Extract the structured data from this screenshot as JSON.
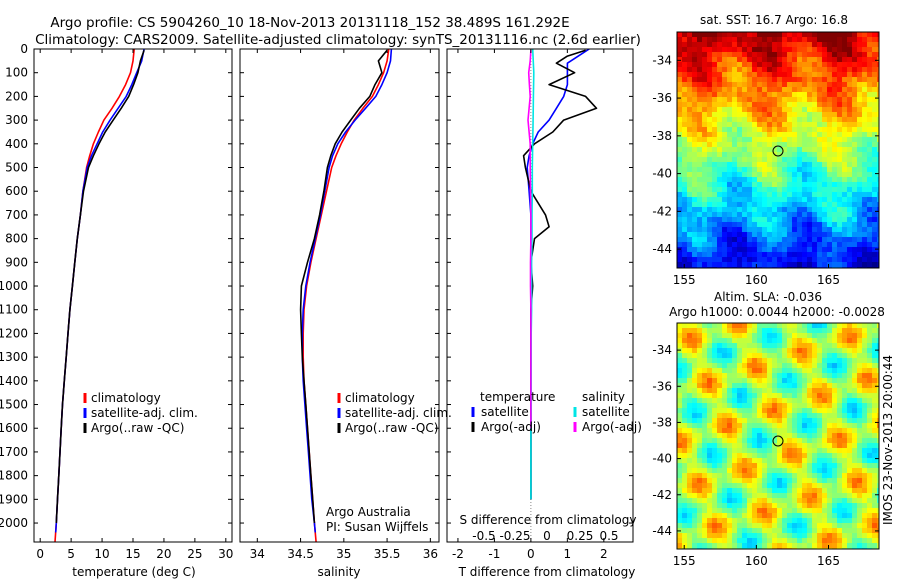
{
  "header": {
    "line1": "Argo profile: CS 5904260_10 18-Nov-2013 20131118_152 38.489S 161.292E",
    "line2": "Climatology: CARS2009. Satellite-adjusted climatology: synTS_20131116.nc (2.6d earlier)"
  },
  "legend_colors": {
    "climatology": "#ff0000",
    "satellite": "#0000ff",
    "argo": "#000000",
    "sal_sat": "#00e5e5",
    "sal_argo": "#ff00ff",
    "marker": "#000000"
  },
  "panels": {
    "temperature": {
      "xlabel": "temperature (deg C)",
      "legend": [
        "climatology",
        "satellite-adj. clim.",
        "Argo(..raw -QC)"
      ]
    },
    "salinity": {
      "xlabel": "salinity",
      "legend": [
        "climatology",
        "satellite-adj. clim.",
        "Argo(..raw -QC)"
      ],
      "credit1": "Argo Australia",
      "credit2": "PI: Susan Wijffels"
    },
    "difference": {
      "xlabel": "T difference from climatology",
      "top_axis_label": "S difference from climatology",
      "top_ticks": [
        "-0.5",
        "-0.25",
        "0",
        "0.25",
        "0.5"
      ],
      "legend_temp_title": "temperature",
      "legend_temp": [
        "satellite",
        "Argo(-adj)"
      ],
      "legend_sal_title": "salinity",
      "legend_sal": [
        "satellite",
        "Argo(-adj)"
      ]
    },
    "sst_map": {
      "title": "sat. SST: 16.7  Argo: 16.8",
      "profile_lon": 161.292,
      "profile_lat": -38.489
    },
    "sla_map": {
      "title1": "Altim. SLA: -0.036",
      "title2": "Argo h1000: 0.0044 h2000: -0.0028",
      "profile_lon": 161.292,
      "profile_lat": -38.489
    },
    "side_label": "IMOS 23-Nov-2013 20:00:44"
  },
  "chart_data": [
    {
      "type": "line",
      "name": "temperature-profile",
      "xlabel": "temperature (deg C)",
      "ylabel": "",
      "xlim": [
        -1,
        31
      ],
      "ylim": [
        2080,
        0
      ],
      "xticks": [
        0,
        5,
        10,
        15,
        20,
        25,
        30
      ],
      "yticks": [
        0,
        100,
        200,
        300,
        400,
        500,
        600,
        700,
        800,
        900,
        1000,
        1100,
        1200,
        1300,
        1400,
        1500,
        1600,
        1700,
        1800,
        1900,
        2000
      ],
      "series": [
        {
          "name": "climatology",
          "color": "#ff0000",
          "x": [
            15.2,
            15.0,
            14.6,
            13.8,
            12.8,
            11.6,
            10.3,
            9.4,
            8.6,
            8.0,
            7.5,
            6.9,
            6.5,
            6.0,
            5.6,
            5.2,
            4.8,
            4.5,
            4.2,
            3.9,
            3.6,
            3.4,
            3.2,
            3.0,
            2.8,
            2.6,
            2.4
          ],
          "y": [
            0,
            50,
            100,
            150,
            200,
            250,
            300,
            350,
            400,
            450,
            500,
            600,
            700,
            800,
            900,
            1000,
            1100,
            1200,
            1300,
            1400,
            1500,
            1600,
            1700,
            1800,
            1900,
            2000,
            2080
          ]
        },
        {
          "name": "satellite-adj. clim.",
          "color": "#0000ff",
          "x": [
            16.8,
            16.4,
            15.6,
            14.8,
            13.9,
            12.6,
            11.3,
            10.1,
            9.2,
            8.3,
            7.6,
            6.9,
            6.5,
            6.0,
            5.6,
            5.2,
            4.8,
            4.5,
            4.2,
            3.9,
            3.6,
            3.4,
            3.2,
            3.0,
            2.8,
            2.6,
            2.5
          ],
          "y": [
            0,
            50,
            100,
            150,
            200,
            250,
            300,
            350,
            400,
            450,
            500,
            600,
            700,
            800,
            900,
            1000,
            1100,
            1200,
            1300,
            1400,
            1500,
            1600,
            1700,
            1800,
            1900,
            2000,
            2040
          ]
        },
        {
          "name": "Argo(..raw -QC)",
          "color": "#000000",
          "x": [
            16.8,
            16.2,
            15.8,
            15.1,
            14.3,
            13.1,
            11.8,
            10.5,
            9.5,
            8.6,
            7.8,
            7.0,
            6.5,
            6.0,
            5.6,
            5.2,
            4.8,
            4.5,
            4.2,
            3.9,
            3.6,
            3.4,
            3.2,
            3.0,
            2.8,
            2.6
          ],
          "y": [
            5,
            50,
            100,
            150,
            200,
            250,
            300,
            350,
            400,
            450,
            500,
            600,
            700,
            800,
            900,
            1000,
            1100,
            1200,
            1300,
            1400,
            1500,
            1600,
            1700,
            1800,
            1900,
            2000
          ]
        }
      ]
    },
    {
      "type": "line",
      "name": "salinity-profile",
      "xlabel": "salinity",
      "ylabel": "",
      "xlim": [
        33.8,
        36.1
      ],
      "ylim": [
        2080,
        0
      ],
      "xticks": [
        34,
        34.5,
        35,
        35.5,
        36
      ],
      "series": [
        {
          "name": "climatology",
          "color": "#ff0000",
          "x": [
            35.52,
            35.5,
            35.46,
            35.4,
            35.33,
            35.22,
            35.12,
            35.04,
            34.97,
            34.91,
            34.86,
            34.8,
            34.74,
            34.68,
            34.62,
            34.57,
            34.54,
            34.53,
            34.53,
            34.54,
            34.56,
            34.58,
            34.6,
            34.62,
            34.64,
            34.66,
            34.68
          ],
          "y": [
            0,
            50,
            100,
            150,
            200,
            250,
            300,
            350,
            400,
            450,
            500,
            600,
            700,
            800,
            900,
            1000,
            1100,
            1200,
            1300,
            1400,
            1500,
            1600,
            1700,
            1800,
            1900,
            2000,
            2080
          ]
        },
        {
          "name": "satellite-adj. clim.",
          "color": "#0000ff",
          "x": [
            35.55,
            35.54,
            35.5,
            35.44,
            35.37,
            35.25,
            35.13,
            35.02,
            34.93,
            34.87,
            34.83,
            34.78,
            34.73,
            34.67,
            34.61,
            34.56,
            34.53,
            34.52,
            34.52,
            34.53,
            34.55,
            34.57,
            34.59,
            34.61,
            34.63,
            34.66,
            34.67
          ],
          "y": [
            0,
            50,
            100,
            150,
            200,
            250,
            300,
            350,
            400,
            450,
            500,
            600,
            700,
            800,
            900,
            1000,
            1100,
            1200,
            1300,
            1400,
            1500,
            1600,
            1700,
            1800,
            1900,
            2000,
            2040
          ]
        },
        {
          "name": "Argo(..raw -QC)",
          "color": "#000000",
          "x": [
            35.5,
            35.4,
            35.44,
            35.36,
            35.3,
            35.18,
            35.08,
            34.98,
            34.9,
            34.85,
            34.81,
            34.77,
            34.72,
            34.66,
            34.58,
            34.51,
            34.5,
            34.51,
            34.52,
            34.54,
            34.56,
            34.58,
            34.6,
            34.62,
            34.64,
            34.66
          ],
          "y": [
            5,
            50,
            100,
            150,
            200,
            250,
            300,
            350,
            400,
            450,
            500,
            600,
            700,
            800,
            900,
            1000,
            1100,
            1200,
            1300,
            1400,
            1500,
            1600,
            1700,
            1800,
            1900,
            2000
          ]
        }
      ]
    },
    {
      "type": "line",
      "name": "difference-profile",
      "xlabel": "T difference from climatology",
      "top_axis_label": "S difference from climatology",
      "ylabel": "",
      "xlim": [
        -2.3,
        2.8
      ],
      "ylim": [
        2080,
        0
      ],
      "xticks": [
        -2,
        -1,
        0,
        1,
        2
      ],
      "top_xlim": [
        -0.575,
        0.7
      ],
      "top_xticks": [
        -0.5,
        -0.25,
        0,
        0.25,
        0.5
      ],
      "series": [
        {
          "name": "temperature satellite",
          "color": "#0000ff",
          "x": [
            1.6,
            1.3,
            1.0,
            1.0,
            1.0,
            0.9,
            0.7,
            0.5,
            0.2,
            0.05,
            -0.05,
            -0.1,
            -0.05,
            0,
            0,
            0,
            0,
            0,
            0,
            0,
            0,
            0,
            0,
            0,
            0,
            0
          ],
          "y": [
            0,
            30,
            60,
            100,
            150,
            200,
            250,
            300,
            350,
            400,
            450,
            500,
            600,
            700,
            800,
            900,
            1000,
            1100,
            1200,
            1300,
            1400,
            1500,
            1600,
            1700,
            1800,
            1900
          ]
        },
        {
          "name": "temperature Argo(-adj)",
          "color": "#000000",
          "x": [
            1.5,
            1.0,
            0.7,
            1.2,
            0.5,
            1.5,
            1.8,
            0.9,
            0.6,
            0.1,
            -0.2,
            -0.15,
            0,
            0.4,
            0.5,
            0.1,
            0,
            0.05,
            0,
            0,
            0,
            0,
            0,
            0,
            0,
            0,
            0
          ],
          "y": [
            5,
            30,
            60,
            100,
            150,
            200,
            250,
            300,
            350,
            400,
            450,
            500,
            600,
            700,
            750,
            800,
            900,
            1000,
            1100,
            1200,
            1300,
            1400,
            1500,
            1600,
            1700,
            1800,
            1900
          ]
        },
        {
          "name": "salinity satellite",
          "color": "#00e5e5",
          "x": [
            0.05,
            0.08,
            0.07,
            0.06,
            0.05,
            0.04,
            0.04,
            0.03,
            0.03,
            0.02,
            0.02,
            0.02,
            0.01,
            0.01,
            0.01,
            0.01,
            0,
            0,
            0,
            0
          ],
          "y": [
            0,
            100,
            200,
            300,
            400,
            500,
            600,
            700,
            800,
            900,
            1000,
            1100,
            1200,
            1300,
            1400,
            1500,
            1600,
            1700,
            1800,
            1900
          ]
        },
        {
          "name": "salinity Argo(-adj)",
          "color": "#ff00ff",
          "x": [
            0,
            -0.02,
            -0.06,
            -0.04,
            -0.02,
            -0.08,
            -0.05,
            -0.02,
            -0.02,
            -0.01,
            0,
            0,
            -0.01,
            -0.01,
            0,
            0,
            0,
            0,
            0,
            0
          ],
          "y": [
            5,
            50,
            100,
            150,
            200,
            300,
            350,
            400,
            500,
            600,
            700,
            800,
            900,
            1000,
            1100,
            1200,
            1300,
            1400,
            1500,
            1600
          ]
        }
      ]
    },
    {
      "type": "heatmap",
      "name": "sst-map",
      "title": "sat. SST: 16.7  Argo: 16.8",
      "xlim": [
        154.5,
        168.5
      ],
      "ylim": [
        -45,
        -32.5
      ],
      "xticks": [
        155,
        160,
        165
      ],
      "yticks": [
        -34,
        -36,
        -38,
        -40,
        -42,
        -44
      ],
      "colormap": "jet",
      "marker": {
        "lon": 161.292,
        "lat": -38.489
      }
    },
    {
      "type": "heatmap",
      "name": "sla-map",
      "title": "Altim. SLA: -0.036",
      "subtitle": "Argo h1000: 0.0044 h2000: -0.0028",
      "xlim": [
        154.5,
        168.5
      ],
      "ylim": [
        -45,
        -32.5
      ],
      "xticks": [
        155,
        160,
        165
      ],
      "yticks": [
        -34,
        -36,
        -38,
        -40,
        -42,
        -44
      ],
      "colormap": "jet",
      "marker": {
        "lon": 161.292,
        "lat": -38.489
      }
    }
  ]
}
